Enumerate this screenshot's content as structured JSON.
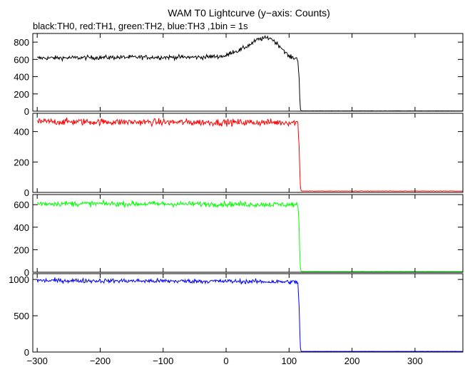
{
  "title": "WAM T0 Lightcurve (y−axis: Counts)",
  "subtitle": "black:TH0, red:TH1, green:TH2, blue:TH3 ,1bin = 1s",
  "chart_data": {
    "type": "line",
    "x_range": [
      -307,
      376
    ],
    "x_ticks": [
      -300,
      -200,
      -100,
      0,
      100,
      200,
      300
    ],
    "x_tick_labels": [
      "−300",
      "−200",
      "−100",
      "0",
      "100",
      "200",
      "300"
    ],
    "bin_seconds": 1,
    "panels": [
      {
        "name": "TH0",
        "color": "#000000",
        "ylim": [
          0,
          900
        ],
        "y_ticks": [
          0,
          200,
          400,
          600,
          800
        ],
        "y_tick_labels": [
          "0",
          "200",
          "400",
          "600",
          "800"
        ],
        "profile": {
          "x": [
            -300,
            -150,
            -40,
            0,
            10,
            20,
            30,
            40,
            50,
            60,
            70,
            80,
            90,
            100,
            112,
            114,
            116,
            117,
            118,
            119,
            120,
            376
          ],
          "y": [
            615,
            625,
            625,
            640,
            690,
            700,
            740,
            780,
            830,
            845,
            850,
            790,
            720,
            630,
            610,
            600,
            380,
            150,
            30,
            4,
            2,
            2
          ]
        },
        "noise": 18
      },
      {
        "name": "TH1",
        "color": "#ff0000",
        "ylim": [
          0,
          520
        ],
        "y_ticks": [
          0,
          200,
          400
        ],
        "y_tick_labels": [
          "0",
          "200",
          "400"
        ],
        "profile": {
          "x": [
            -300,
            0,
            112,
            114,
            116,
            117,
            118,
            119,
            120,
            376
          ],
          "y": [
            465,
            460,
            460,
            455,
            300,
            150,
            40,
            12,
            8,
            8
          ]
        },
        "noise": 16
      },
      {
        "name": "TH2",
        "color": "#00ff00",
        "ylim": [
          0,
          690
        ],
        "y_ticks": [
          0,
          200,
          400,
          600
        ],
        "y_tick_labels": [
          "0",
          "200",
          "400",
          "600"
        ],
        "profile": {
          "x": [
            -300,
            0,
            112,
            114,
            116,
            117,
            118,
            119,
            120,
            376
          ],
          "y": [
            610,
            605,
            600,
            595,
            390,
            170,
            40,
            10,
            5,
            5
          ]
        },
        "noise": 17
      },
      {
        "name": "TH3",
        "color": "#0000ff",
        "ylim": [
          0,
          1080
        ],
        "y_ticks": [
          0,
          500,
          1000
        ],
        "y_tick_labels": [
          "0",
          "500",
          "1000"
        ],
        "profile": {
          "x": [
            -300,
            0,
            112,
            114,
            116,
            117,
            118,
            119,
            120,
            376
          ],
          "y": [
            985,
            975,
            965,
            955,
            620,
            300,
            60,
            12,
            8,
            8
          ]
        },
        "noise": 22
      }
    ]
  }
}
